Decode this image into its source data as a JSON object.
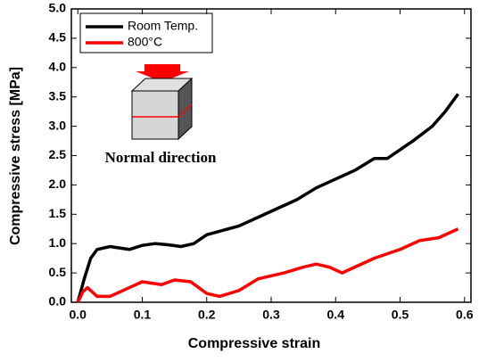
{
  "chart_data": {
    "type": "line",
    "xlabel": "Compressive strain",
    "ylabel": "Compressive stress [MPa]",
    "annotation": "Normal direction",
    "xlim": [
      -0.01,
      0.61
    ],
    "ylim": [
      0,
      5
    ],
    "xticks": [
      {
        "value": 0,
        "label": "0.0"
      },
      {
        "value": 0.1,
        "label": "0.1"
      },
      {
        "value": 0.2,
        "label": "0.2"
      },
      {
        "value": 0.3,
        "label": "0.3"
      },
      {
        "value": 0.4,
        "label": "0.4"
      },
      {
        "value": 0.5,
        "label": "0.5"
      },
      {
        "value": 0.6,
        "label": "0.6"
      }
    ],
    "yticks": [
      {
        "value": 0,
        "label": "0.0"
      },
      {
        "value": 0.5,
        "label": "0.5"
      },
      {
        "value": 1,
        "label": "1.0"
      },
      {
        "value": 1.5,
        "label": "1.5"
      },
      {
        "value": 2,
        "label": "2.0"
      },
      {
        "value": 2.5,
        "label": "2.5"
      },
      {
        "value": 3,
        "label": "3.0"
      },
      {
        "value": 3.5,
        "label": "3.5"
      },
      {
        "value": 4,
        "label": "4.0"
      },
      {
        "value": 4.5,
        "label": "4.5"
      },
      {
        "value": 5,
        "label": "5.0"
      }
    ],
    "legend_position": "upper left",
    "series": [
      {
        "name": "Room Temp.",
        "color": "#000000",
        "x": [
          0,
          0.01,
          0.02,
          0.03,
          0.05,
          0.08,
          0.1,
          0.12,
          0.14,
          0.16,
          0.18,
          0.2,
          0.25,
          0.3,
          0.34,
          0.37,
          0.4,
          0.43,
          0.46,
          0.48,
          0.5,
          0.52,
          0.55,
          0.57,
          0.59
        ],
        "values": [
          0,
          0.4,
          0.75,
          0.9,
          0.95,
          0.9,
          0.97,
          1.0,
          0.98,
          0.95,
          1.0,
          1.15,
          1.3,
          1.55,
          1.75,
          1.95,
          2.1,
          2.25,
          2.45,
          2.45,
          2.6,
          2.75,
          3.0,
          3.25,
          3.55
        ]
      },
      {
        "name": "800°C",
        "color": "#ff0000",
        "x": [
          0,
          0.008,
          0.015,
          0.03,
          0.05,
          0.08,
          0.1,
          0.13,
          0.15,
          0.175,
          0.2,
          0.22,
          0.25,
          0.28,
          0.32,
          0.35,
          0.37,
          0.39,
          0.41,
          0.43,
          0.46,
          0.5,
          0.53,
          0.56,
          0.59
        ],
        "values": [
          0,
          0.18,
          0.25,
          0.1,
          0.1,
          0.25,
          0.35,
          0.3,
          0.38,
          0.35,
          0.15,
          0.1,
          0.2,
          0.4,
          0.5,
          0.6,
          0.65,
          0.6,
          0.5,
          0.6,
          0.75,
          0.9,
          1.05,
          1.1,
          1.25
        ]
      }
    ]
  }
}
